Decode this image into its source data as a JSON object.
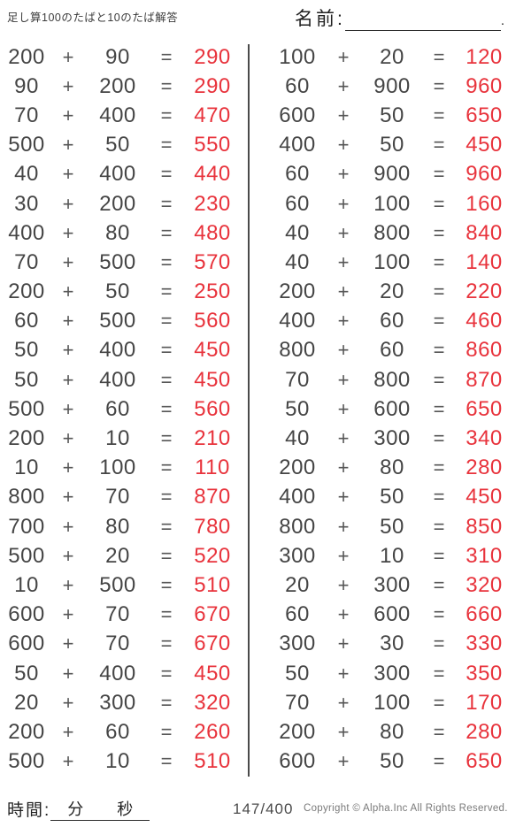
{
  "colors": {
    "answer_red": "#e8333c",
    "ink": "#454545"
  },
  "header": {
    "title": "足し算100のたばと10のたば解答",
    "name_label": "名前:",
    "name_line_end": "."
  },
  "symbols": {
    "plus": "+",
    "equals": "="
  },
  "worksheet": {
    "left_column": [
      {
        "a": "200",
        "b": "90",
        "ans": "290"
      },
      {
        "a": "90",
        "b": "200",
        "ans": "290"
      },
      {
        "a": "70",
        "b": "400",
        "ans": "470"
      },
      {
        "a": "500",
        "b": "50",
        "ans": "550"
      },
      {
        "a": "40",
        "b": "400",
        "ans": "440"
      },
      {
        "a": "30",
        "b": "200",
        "ans": "230"
      },
      {
        "a": "400",
        "b": "80",
        "ans": "480"
      },
      {
        "a": "70",
        "b": "500",
        "ans": "570"
      },
      {
        "a": "200",
        "b": "50",
        "ans": "250"
      },
      {
        "a": "60",
        "b": "500",
        "ans": "560"
      },
      {
        "a": "50",
        "b": "400",
        "ans": "450"
      },
      {
        "a": "50",
        "b": "400",
        "ans": "450"
      },
      {
        "a": "500",
        "b": "60",
        "ans": "560"
      },
      {
        "a": "200",
        "b": "10",
        "ans": "210"
      },
      {
        "a": "10",
        "b": "100",
        "ans": "110"
      },
      {
        "a": "800",
        "b": "70",
        "ans": "870"
      },
      {
        "a": "700",
        "b": "80",
        "ans": "780"
      },
      {
        "a": "500",
        "b": "20",
        "ans": "520"
      },
      {
        "a": "10",
        "b": "500",
        "ans": "510"
      },
      {
        "a": "600",
        "b": "70",
        "ans": "670"
      },
      {
        "a": "600",
        "b": "70",
        "ans": "670"
      },
      {
        "a": "50",
        "b": "400",
        "ans": "450"
      },
      {
        "a": "20",
        "b": "300",
        "ans": "320"
      },
      {
        "a": "200",
        "b": "60",
        "ans": "260"
      },
      {
        "a": "500",
        "b": "10",
        "ans": "510"
      }
    ],
    "right_column": [
      {
        "a": "100",
        "b": "20",
        "ans": "120"
      },
      {
        "a": "60",
        "b": "900",
        "ans": "960"
      },
      {
        "a": "600",
        "b": "50",
        "ans": "650"
      },
      {
        "a": "400",
        "b": "50",
        "ans": "450"
      },
      {
        "a": "60",
        "b": "900",
        "ans": "960"
      },
      {
        "a": "60",
        "b": "100",
        "ans": "160"
      },
      {
        "a": "40",
        "b": "800",
        "ans": "840"
      },
      {
        "a": "40",
        "b": "100",
        "ans": "140"
      },
      {
        "a": "200",
        "b": "20",
        "ans": "220"
      },
      {
        "a": "400",
        "b": "60",
        "ans": "460"
      },
      {
        "a": "800",
        "b": "60",
        "ans": "860"
      },
      {
        "a": "70",
        "b": "800",
        "ans": "870"
      },
      {
        "a": "50",
        "b": "600",
        "ans": "650"
      },
      {
        "a": "40",
        "b": "300",
        "ans": "340"
      },
      {
        "a": "200",
        "b": "80",
        "ans": "280"
      },
      {
        "a": "400",
        "b": "50",
        "ans": "450"
      },
      {
        "a": "800",
        "b": "50",
        "ans": "850"
      },
      {
        "a": "300",
        "b": "10",
        "ans": "310"
      },
      {
        "a": "20",
        "b": "300",
        "ans": "320"
      },
      {
        "a": "60",
        "b": "600",
        "ans": "660"
      },
      {
        "a": "300",
        "b": "30",
        "ans": "330"
      },
      {
        "a": "50",
        "b": "300",
        "ans": "350"
      },
      {
        "a": "70",
        "b": "100",
        "ans": "170"
      },
      {
        "a": "200",
        "b": "80",
        "ans": "280"
      },
      {
        "a": "600",
        "b": "50",
        "ans": "650"
      }
    ]
  },
  "footer": {
    "time_label": "時間:",
    "minutes_label": "分",
    "seconds_label": "秒",
    "page_indicator": "147/400",
    "copyright": "Copyright ©  Alpha.Inc All Rights Reserved."
  }
}
